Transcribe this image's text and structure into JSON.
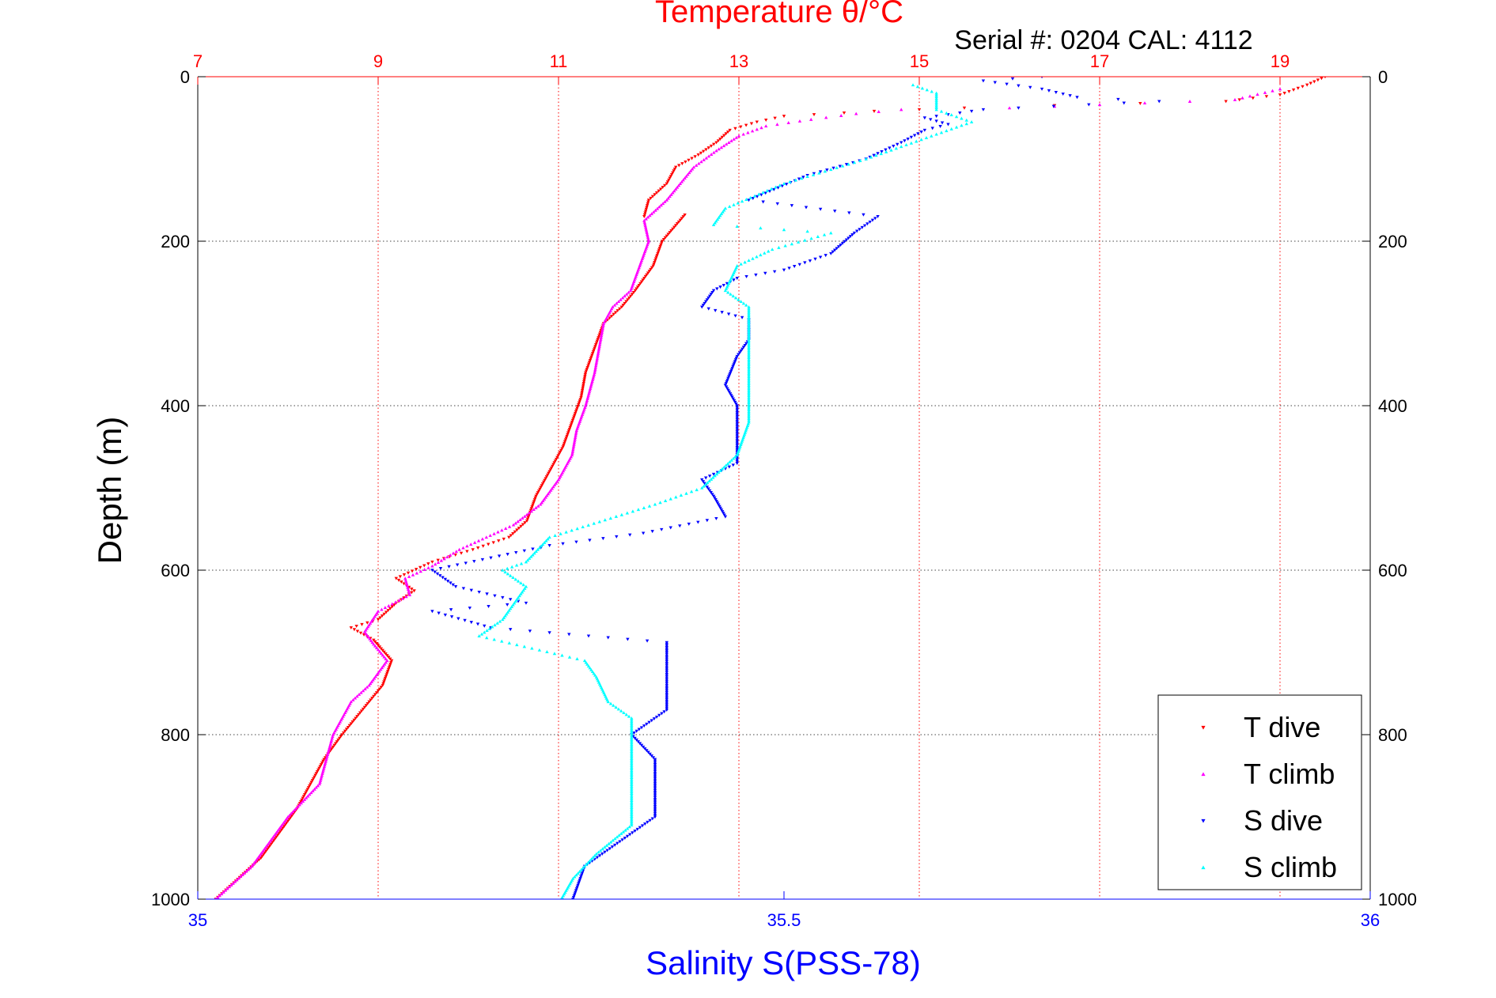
{
  "chart_data": {
    "type": "scatter",
    "title": "Temperature θ/°C",
    "subtitle": "Serial #: 0204  CAL: 4112",
    "top_axis": {
      "label": "Temperature θ/°C",
      "range": [
        7,
        20
      ],
      "ticks": [
        7,
        9,
        11,
        13,
        15,
        17,
        19
      ],
      "tick_labels": [
        "7",
        "9",
        "11",
        "13",
        "15",
        "17",
        "19"
      ],
      "color": "#ff0000"
    },
    "bottom_axis": {
      "label": "Salinity S(PSS-78)",
      "range": [
        35,
        36
      ],
      "ticks": [
        35,
        35.5,
        36
      ],
      "tick_labels": [
        "35",
        "35.5",
        "36"
      ],
      "color": "#0000ff"
    },
    "y_axis": {
      "label": "Depth (m)",
      "range": [
        0,
        1000
      ],
      "reversed": true,
      "ticks": [
        0,
        200,
        400,
        600,
        800,
        1000
      ],
      "tick_labels": [
        "0",
        "200",
        "400",
        "600",
        "800",
        "1000"
      ]
    },
    "grid": true,
    "legend": "bottom-right",
    "series": [
      {
        "name": "T dive",
        "axis": "top",
        "color": "#ff0000",
        "marker": "triangle-down",
        "points": [
          [
            19.5,
            0
          ],
          [
            19.3,
            10
          ],
          [
            19.0,
            22
          ],
          [
            18.4,
            30
          ],
          [
            16.5,
            35
          ],
          [
            15.5,
            38
          ],
          [
            14.5,
            42
          ],
          [
            13.5,
            48
          ],
          [
            13.2,
            55
          ],
          [
            12.9,
            65
          ],
          [
            12.75,
            80
          ],
          [
            12.55,
            95
          ],
          [
            12.3,
            110
          ],
          [
            12.2,
            130
          ],
          [
            12.0,
            150
          ],
          [
            11.95,
            170
          ],
          [
            12.4,
            168
          ],
          [
            12.15,
            200
          ],
          [
            12.05,
            230
          ],
          [
            11.85,
            260
          ],
          [
            11.7,
            280
          ],
          [
            11.5,
            300
          ],
          [
            11.4,
            330
          ],
          [
            11.3,
            360
          ],
          [
            11.25,
            390
          ],
          [
            11.15,
            420
          ],
          [
            11.05,
            450
          ],
          [
            10.9,
            480
          ],
          [
            10.75,
            510
          ],
          [
            10.65,
            540
          ],
          [
            10.45,
            560
          ],
          [
            10.05,
            575
          ],
          [
            9.6,
            590
          ],
          [
            9.2,
            610
          ],
          [
            9.4,
            625
          ],
          [
            9.2,
            640
          ],
          [
            9.0,
            660
          ],
          [
            8.7,
            670
          ],
          [
            8.95,
            685
          ],
          [
            9.15,
            710
          ],
          [
            9.05,
            740
          ],
          [
            8.9,
            760
          ],
          [
            8.75,
            780
          ],
          [
            8.6,
            800
          ],
          [
            8.4,
            830
          ],
          [
            8.25,
            860
          ],
          [
            8.1,
            890
          ],
          [
            7.9,
            920
          ],
          [
            7.7,
            950
          ],
          [
            7.4,
            980
          ],
          [
            7.2,
            1000
          ]
        ]
      },
      {
        "name": "T climb",
        "axis": "top",
        "color": "#ff00ff",
        "marker": "triangle-up",
        "points": [
          [
            19.0,
            15
          ],
          [
            18.5,
            28
          ],
          [
            17.5,
            32
          ],
          [
            16.0,
            38
          ],
          [
            14.8,
            40
          ],
          [
            14.3,
            45
          ],
          [
            13.8,
            52
          ],
          [
            13.3,
            60
          ],
          [
            13.0,
            72
          ],
          [
            12.75,
            90
          ],
          [
            12.5,
            110
          ],
          [
            12.35,
            130
          ],
          [
            12.2,
            150
          ],
          [
            11.95,
            175
          ],
          [
            12.0,
            200
          ],
          [
            11.9,
            230
          ],
          [
            11.8,
            260
          ],
          [
            11.6,
            280
          ],
          [
            11.5,
            300
          ],
          [
            11.45,
            330
          ],
          [
            11.4,
            360
          ],
          [
            11.3,
            400
          ],
          [
            11.2,
            430
          ],
          [
            11.15,
            460
          ],
          [
            11.0,
            490
          ],
          [
            10.8,
            520
          ],
          [
            10.5,
            545
          ],
          [
            10.2,
            560
          ],
          [
            9.9,
            575
          ],
          [
            9.6,
            595
          ],
          [
            9.3,
            610
          ],
          [
            9.35,
            630
          ],
          [
            9.0,
            650
          ],
          [
            8.85,
            675
          ],
          [
            8.95,
            690
          ],
          [
            9.1,
            710
          ],
          [
            8.9,
            740
          ],
          [
            8.7,
            760
          ],
          [
            8.6,
            780
          ],
          [
            8.5,
            800
          ],
          [
            8.45,
            820
          ],
          [
            8.35,
            860
          ],
          [
            8.0,
            900
          ],
          [
            7.8,
            930
          ],
          [
            7.6,
            960
          ],
          [
            7.35,
            985
          ],
          [
            7.2,
            1000
          ]
        ]
      },
      {
        "name": "S dive",
        "axis": "bottom",
        "color": "#0000ff",
        "marker": "triangle-down",
        "points": [
          [
            35.72,
            0
          ],
          [
            35.67,
            5
          ],
          [
            35.72,
            15
          ],
          [
            35.75,
            25
          ],
          [
            35.82,
            30
          ],
          [
            35.67,
            40
          ],
          [
            35.62,
            50
          ],
          [
            35.64,
            58
          ],
          [
            35.62,
            65
          ],
          [
            35.6,
            80
          ],
          [
            35.57,
            100
          ],
          [
            35.52,
            120
          ],
          [
            35.47,
            150
          ],
          [
            35.58,
            170
          ],
          [
            35.56,
            190
          ],
          [
            35.54,
            215
          ],
          [
            35.5,
            235
          ],
          [
            35.46,
            245
          ],
          [
            35.44,
            260
          ],
          [
            35.43,
            280
          ],
          [
            35.47,
            295
          ],
          [
            35.47,
            320
          ],
          [
            35.46,
            340
          ],
          [
            35.45,
            375
          ],
          [
            35.46,
            400
          ],
          [
            35.46,
            440
          ],
          [
            35.46,
            470
          ],
          [
            35.43,
            490
          ],
          [
            35.44,
            510
          ],
          [
            35.45,
            535
          ],
          [
            35.38,
            555
          ],
          [
            35.3,
            570
          ],
          [
            35.25,
            585
          ],
          [
            35.2,
            600
          ],
          [
            35.22,
            620
          ],
          [
            35.28,
            640
          ],
          [
            35.2,
            650
          ],
          [
            35.25,
            670
          ],
          [
            35.4,
            688
          ],
          [
            35.4,
            700
          ],
          [
            35.4,
            720
          ],
          [
            35.4,
            740
          ],
          [
            35.4,
            770
          ],
          [
            35.37,
            800
          ],
          [
            35.39,
            830
          ],
          [
            35.39,
            870
          ],
          [
            35.39,
            900
          ],
          [
            35.36,
            930
          ],
          [
            35.33,
            960
          ],
          [
            35.32,
            1000
          ]
        ]
      },
      {
        "name": "S climb",
        "axis": "bottom",
        "color": "#00ffff",
        "marker": "triangle-up",
        "points": [
          [
            35.61,
            10
          ],
          [
            35.63,
            20
          ],
          [
            35.63,
            40
          ],
          [
            35.66,
            55
          ],
          [
            35.63,
            70
          ],
          [
            35.57,
            100
          ],
          [
            35.5,
            130
          ],
          [
            35.45,
            160
          ],
          [
            35.44,
            180
          ],
          [
            35.54,
            190
          ],
          [
            35.49,
            210
          ],
          [
            35.46,
            230
          ],
          [
            35.45,
            260
          ],
          [
            35.47,
            280
          ],
          [
            35.47,
            310
          ],
          [
            35.47,
            350
          ],
          [
            35.47,
            390
          ],
          [
            35.47,
            420
          ],
          [
            35.46,
            460
          ],
          [
            35.43,
            500
          ],
          [
            35.39,
            520
          ],
          [
            35.3,
            560
          ],
          [
            35.28,
            590
          ],
          [
            35.26,
            600
          ],
          [
            35.28,
            620
          ],
          [
            35.27,
            640
          ],
          [
            35.26,
            660
          ],
          [
            35.24,
            680
          ],
          [
            35.33,
            710
          ],
          [
            35.34,
            730
          ],
          [
            35.35,
            760
          ],
          [
            35.37,
            780
          ],
          [
            35.37,
            810
          ],
          [
            35.37,
            850
          ],
          [
            35.37,
            880
          ],
          [
            35.37,
            910
          ],
          [
            35.34,
            945
          ],
          [
            35.32,
            975
          ],
          [
            35.31,
            1000
          ]
        ]
      }
    ]
  }
}
